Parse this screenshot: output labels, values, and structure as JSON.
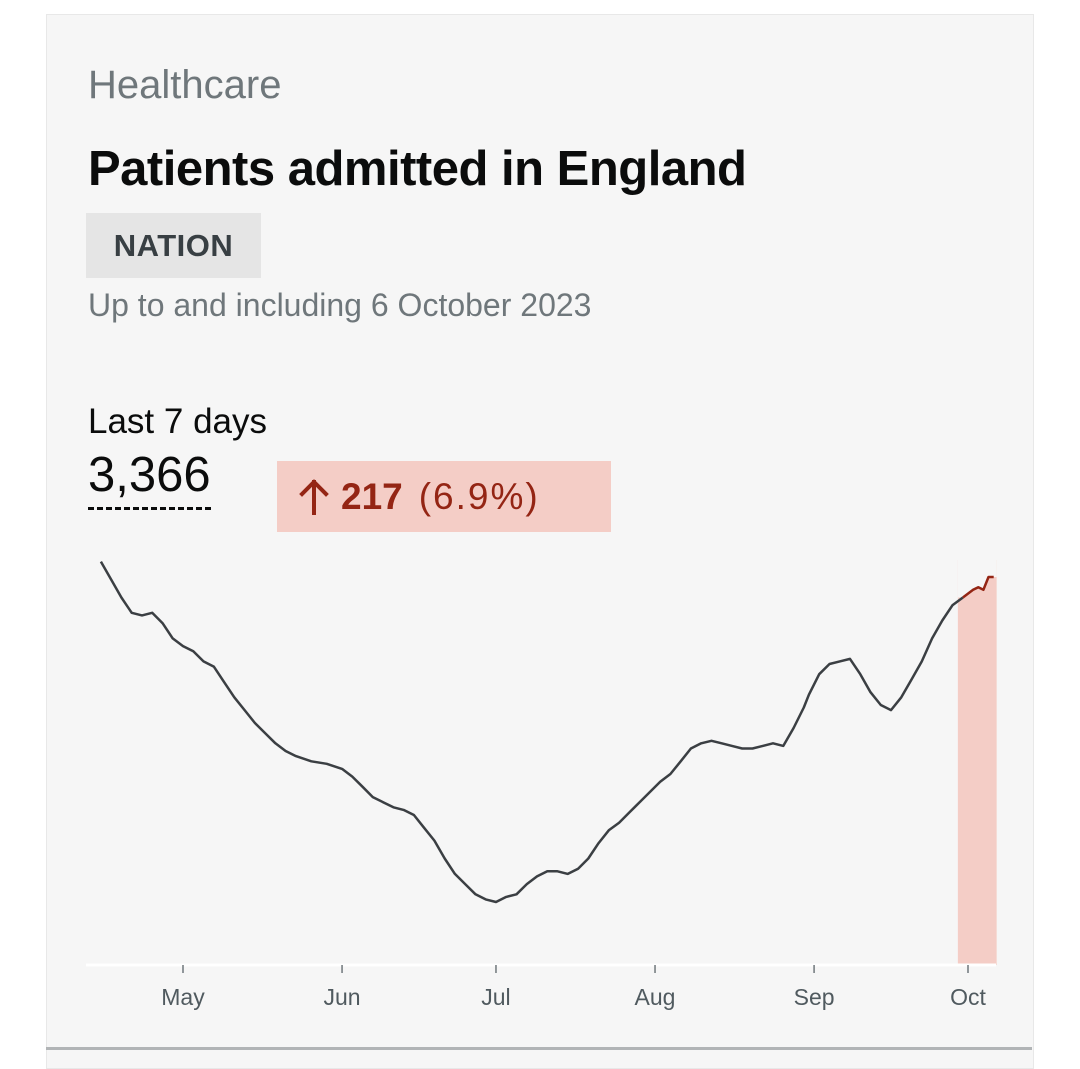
{
  "header": {
    "kicker": "Healthcare",
    "title": "Patients admitted in England",
    "tag": "NATION",
    "subtitle": "Up to and including 6 October 2023"
  },
  "metric": {
    "label": "Last 7 days",
    "value": "3,366",
    "change_value": "217",
    "change_percent": "(6.9%)",
    "change_direction": "up",
    "change_icon": "arrow-up-icon"
  },
  "colors": {
    "line": "#3b3f43",
    "highlight_line": "#942514",
    "highlight_fill": "#f4cdc6"
  },
  "chart_data": {
    "type": "line",
    "title": "",
    "xlabel": "",
    "ylabel": "",
    "x_start": "2023-04-15",
    "x_end": "2023-10-06",
    "x_ticks": [
      {
        "date": "2023-05-01",
        "label": "May"
      },
      {
        "date": "2023-06-01",
        "label": "Jun"
      },
      {
        "date": "2023-07-01",
        "label": "Jul"
      },
      {
        "date": "2023-08-01",
        "label": "Aug"
      },
      {
        "date": "2023-09-01",
        "label": "Sep"
      },
      {
        "date": "2023-10-01",
        "label": "Oct"
      }
    ],
    "y_axis_shown": false,
    "grid": false,
    "highlight_last_days": 7,
    "series": [
      {
        "points": [
          [
            "2023-04-15",
            4800
          ],
          [
            "2023-04-17",
            4730
          ],
          [
            "2023-04-19",
            4660
          ],
          [
            "2023-04-21",
            4600
          ],
          [
            "2023-04-23",
            4590
          ],
          [
            "2023-04-25",
            4600
          ],
          [
            "2023-04-27",
            4560
          ],
          [
            "2023-04-29",
            4500
          ],
          [
            "2023-05-01",
            4470
          ],
          [
            "2023-05-03",
            4450
          ],
          [
            "2023-05-05",
            4410
          ],
          [
            "2023-05-07",
            4390
          ],
          [
            "2023-05-09",
            4330
          ],
          [
            "2023-05-11",
            4270
          ],
          [
            "2023-05-13",
            4220
          ],
          [
            "2023-05-15",
            4170
          ],
          [
            "2023-05-17",
            4130
          ],
          [
            "2023-05-19",
            4090
          ],
          [
            "2023-05-21",
            4060
          ],
          [
            "2023-05-23",
            4040
          ],
          [
            "2023-05-26",
            4020
          ],
          [
            "2023-05-29",
            4010
          ],
          [
            "2023-06-01",
            3990
          ],
          [
            "2023-06-03",
            3960
          ],
          [
            "2023-06-05",
            3920
          ],
          [
            "2023-06-07",
            3880
          ],
          [
            "2023-06-09",
            3860
          ],
          [
            "2023-06-11",
            3840
          ],
          [
            "2023-06-13",
            3830
          ],
          [
            "2023-06-15",
            3810
          ],
          [
            "2023-06-17",
            3760
          ],
          [
            "2023-06-19",
            3710
          ],
          [
            "2023-06-21",
            3640
          ],
          [
            "2023-06-23",
            3580
          ],
          [
            "2023-06-25",
            3540
          ],
          [
            "2023-06-27",
            3500
          ],
          [
            "2023-06-29",
            3480
          ],
          [
            "2023-07-01",
            3470
          ],
          [
            "2023-07-03",
            3490
          ],
          [
            "2023-07-05",
            3500
          ],
          [
            "2023-07-07",
            3540
          ],
          [
            "2023-07-09",
            3570
          ],
          [
            "2023-07-11",
            3590
          ],
          [
            "2023-07-13",
            3590
          ],
          [
            "2023-07-15",
            3580
          ],
          [
            "2023-07-17",
            3600
          ],
          [
            "2023-07-19",
            3640
          ],
          [
            "2023-07-21",
            3700
          ],
          [
            "2023-07-23",
            3750
          ],
          [
            "2023-07-25",
            3780
          ],
          [
            "2023-07-27",
            3820
          ],
          [
            "2023-07-29",
            3860
          ],
          [
            "2023-07-31",
            3900
          ],
          [
            "2023-08-02",
            3940
          ],
          [
            "2023-08-04",
            3970
          ],
          [
            "2023-08-06",
            4020
          ],
          [
            "2023-08-08",
            4070
          ],
          [
            "2023-08-10",
            4090
          ],
          [
            "2023-08-12",
            4100
          ],
          [
            "2023-08-14",
            4090
          ],
          [
            "2023-08-16",
            4080
          ],
          [
            "2023-08-18",
            4070
          ],
          [
            "2023-08-20",
            4070
          ],
          [
            "2023-08-22",
            4080
          ],
          [
            "2023-08-24",
            4090
          ],
          [
            "2023-08-26",
            4080
          ],
          [
            "2023-08-28",
            4150
          ],
          [
            "2023-08-30",
            4230
          ],
          [
            "2023-08-31",
            4280
          ],
          [
            "2023-09-02",
            4360
          ],
          [
            "2023-09-04",
            4400
          ],
          [
            "2023-09-06",
            4410
          ],
          [
            "2023-09-08",
            4420
          ],
          [
            "2023-09-10",
            4360
          ],
          [
            "2023-09-12",
            4290
          ],
          [
            "2023-09-14",
            4240
          ],
          [
            "2023-09-16",
            4220
          ],
          [
            "2023-09-18",
            4270
          ],
          [
            "2023-09-20",
            4340
          ],
          [
            "2023-09-22",
            4410
          ],
          [
            "2023-09-24",
            4500
          ],
          [
            "2023-09-26",
            4570
          ],
          [
            "2023-09-28",
            4630
          ],
          [
            "2023-09-30",
            4660
          ],
          [
            "2023-10-02",
            4690
          ],
          [
            "2023-10-03",
            4700
          ],
          [
            "2023-10-04",
            4690
          ],
          [
            "2023-10-05",
            4740
          ],
          [
            "2023-10-06",
            4740
          ]
        ]
      }
    ]
  }
}
